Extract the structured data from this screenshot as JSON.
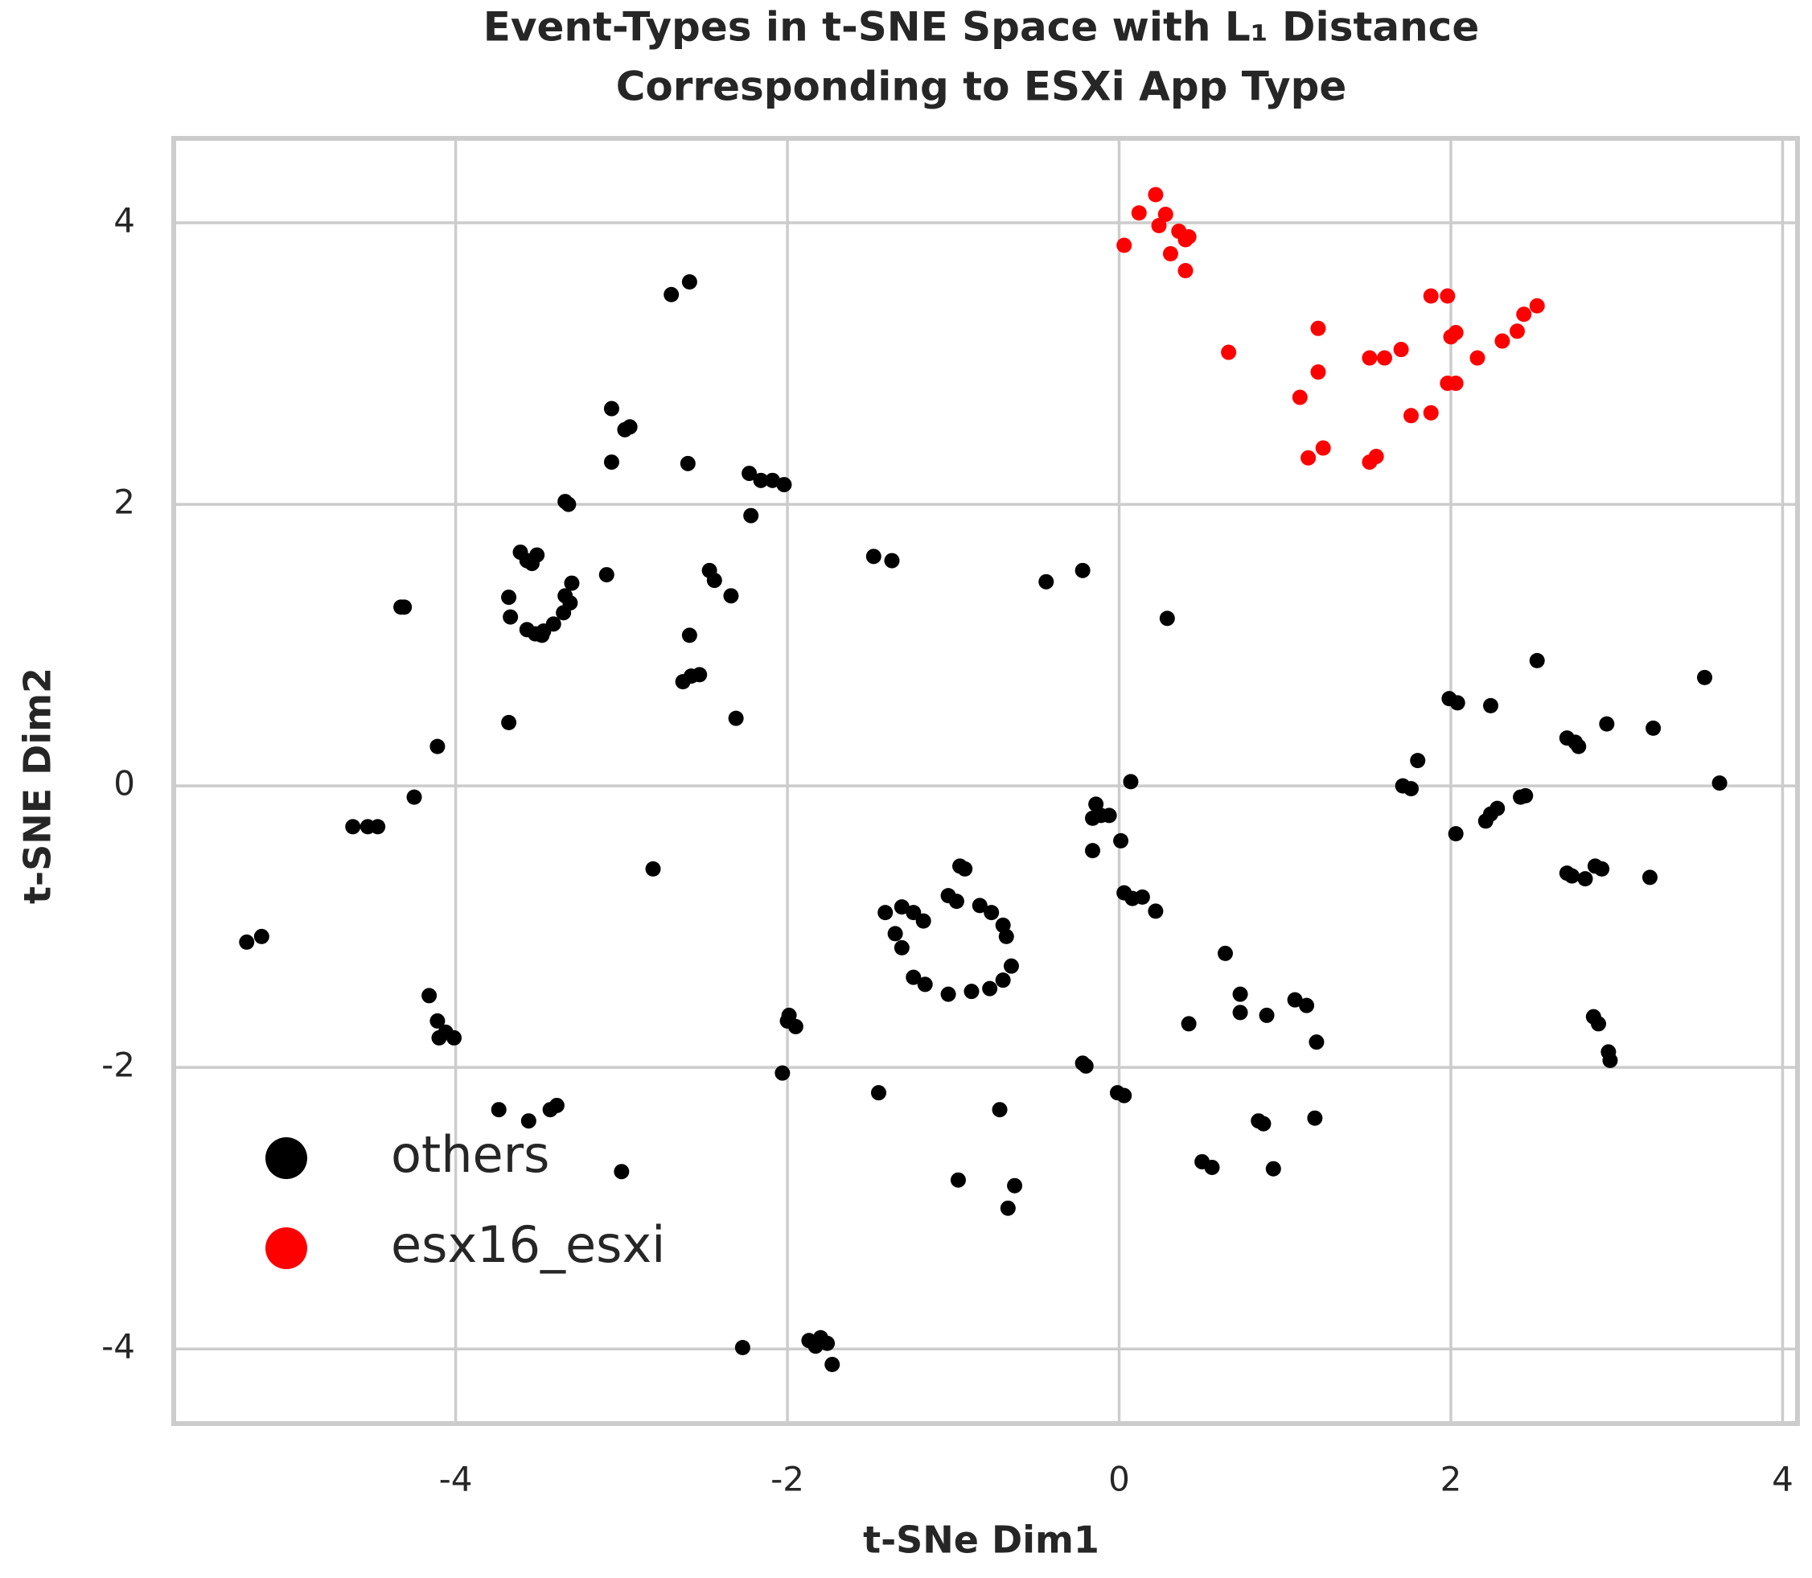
{
  "chart_data": {
    "type": "scatter",
    "title": [
      "Event-Types in t-SNE Space with L₁ Distance",
      "Corresponding to ESXi App Type"
    ],
    "x_label": "t-SNe Dim1",
    "y_label": "t-SNE Dim2",
    "xlim": [
      -5.7,
      4.09
    ],
    "ylim": [
      -4.53,
      4.6
    ],
    "xticks": [
      -4,
      -2,
      0,
      2,
      4
    ],
    "yticks": [
      -4,
      -2,
      0,
      2,
      4
    ],
    "grid": true,
    "legend": "lower left",
    "series": [
      {
        "name": "others",
        "color": "#000000",
        "x": [
          -2.7,
          -2.59,
          -3.06,
          -2.98,
          -2.95,
          -3.06,
          -2.6,
          -2.23,
          -2.16,
          -2.09,
          -2.02,
          -2.22,
          -3.34,
          -3.32,
          -3.09,
          -2.47,
          -2.44,
          -2.34,
          -1.48,
          -1.37,
          -0.44,
          -0.22,
          0.29,
          -4.33,
          -4.31,
          -3.61,
          -3.57,
          -3.54,
          -3.51,
          -3.68,
          -3.67,
          -3.57,
          -3.52,
          -3.47,
          -3.41,
          -3.35,
          -3.31,
          -3.3,
          -3.34,
          -3.48,
          -2.59,
          -2.63,
          -2.58,
          -2.53,
          -2.31,
          -3.68,
          -4.11,
          -4.25,
          -4.62,
          -4.53,
          -4.47,
          -2.81,
          -5.26,
          -5.17,
          -4.16,
          -4.11,
          -4.06,
          -4.01,
          -4.1,
          -3.74,
          -3.56,
          -3.43,
          -3.39,
          -3.0,
          -1.99,
          -1.95,
          -2.0,
          -2.03,
          -2.27,
          -1.87,
          -1.8,
          -1.76,
          -1.83,
          -1.73,
          -1.45,
          -1.41,
          -1.31,
          -1.24,
          -1.18,
          -1.35,
          -1.31,
          -1.24,
          -1.17,
          -1.03,
          -0.89,
          -0.78,
          -0.7,
          -0.65,
          -0.68,
          -0.7,
          -0.77,
          -0.84,
          -0.93,
          -0.96,
          -1.03,
          -0.98,
          -0.72,
          -0.97,
          -0.67,
          -0.63,
          -0.14,
          -0.11,
          -0.16,
          -0.06,
          0.07,
          0.01,
          -0.16,
          0.03,
          0.08,
          0.14,
          0.22,
          -0.22,
          -0.2,
          -0.01,
          0.03,
          0.64,
          0.73,
          0.73,
          0.42,
          0.89,
          1.06,
          1.13,
          1.19,
          0.84,
          0.87,
          1.18,
          0.5,
          0.56,
          0.93,
          2.52,
          1.99,
          2.04,
          2.24,
          2.7,
          2.75,
          2.77,
          2.94,
          3.22,
          3.53,
          3.62,
          1.8,
          1.71,
          1.76,
          2.03,
          2.21,
          2.24,
          2.28,
          2.42,
          2.45,
          2.7,
          2.73,
          2.81,
          2.87,
          2.91,
          3.2,
          2.86,
          2.89,
          2.95,
          2.96
        ],
        "y": [
          3.49,
          3.58,
          2.68,
          2.53,
          2.55,
          2.3,
          2.29,
          2.22,
          2.17,
          2.17,
          2.14,
          1.92,
          2.02,
          2.0,
          1.5,
          1.53,
          1.46,
          1.35,
          1.63,
          1.6,
          1.45,
          1.53,
          1.19,
          1.27,
          1.27,
          1.66,
          1.6,
          1.58,
          1.64,
          1.34,
          1.2,
          1.11,
          1.08,
          1.1,
          1.15,
          1.23,
          1.3,
          1.44,
          1.35,
          1.07,
          1.07,
          0.74,
          0.78,
          0.79,
          0.48,
          0.45,
          0.28,
          -0.08,
          -0.29,
          -0.29,
          -0.29,
          -0.59,
          -1.11,
          -1.07,
          -1.49,
          -1.67,
          -1.75,
          -1.79,
          -1.79,
          -2.3,
          -2.38,
          -2.3,
          -2.27,
          -2.74,
          -1.63,
          -1.71,
          -1.67,
          -2.04,
          -3.99,
          -3.94,
          -3.92,
          -3.96,
          -3.98,
          -4.11,
          -2.18,
          -0.9,
          -0.86,
          -0.9,
          -0.96,
          -1.05,
          -1.15,
          -1.36,
          -1.41,
          -1.48,
          -1.46,
          -1.44,
          -1.38,
          -1.28,
          -1.07,
          -0.99,
          -0.9,
          -0.85,
          -0.59,
          -0.57,
          -0.78,
          -0.82,
          -2.3,
          -2.8,
          -3.0,
          -2.84,
          -0.13,
          -0.21,
          -0.23,
          -0.21,
          0.03,
          -0.39,
          -0.46,
          -0.76,
          -0.8,
          -0.79,
          -0.89,
          -1.97,
          -1.99,
          -2.18,
          -2.2,
          -1.19,
          -1.48,
          -1.61,
          -1.69,
          -1.63,
          -1.52,
          -1.56,
          -1.82,
          -2.38,
          -2.4,
          -2.36,
          -2.67,
          -2.71,
          -2.72,
          0.89,
          0.62,
          0.59,
          0.57,
          0.34,
          0.31,
          0.28,
          0.44,
          0.41,
          0.77,
          0.02,
          0.18,
          0.0,
          -0.02,
          -0.34,
          -0.25,
          -0.2,
          -0.16,
          -0.08,
          -0.07,
          -0.62,
          -0.64,
          -0.66,
          -0.57,
          -0.59,
          -0.65,
          -1.64,
          -1.69,
          -1.89,
          -1.95
        ]
      },
      {
        "name": "esx16_esxi",
        "color": "#ff0000",
        "x": [
          0.03,
          0.12,
          0.22,
          0.24,
          0.28,
          0.31,
          0.36,
          0.4,
          0.42,
          0.4,
          0.66,
          1.09,
          1.2,
          1.2,
          1.14,
          1.23,
          1.51,
          1.6,
          1.7,
          1.51,
          1.55,
          1.76,
          1.88,
          1.88,
          1.98,
          2.0,
          2.03,
          1.98,
          2.03,
          2.16,
          2.31,
          2.4,
          2.44,
          2.52
        ],
        "y": [
          3.84,
          4.07,
          4.2,
          3.98,
          4.06,
          3.78,
          3.94,
          3.88,
          3.9,
          3.66,
          3.08,
          2.76,
          3.25,
          2.94,
          2.33,
          2.4,
          3.04,
          3.04,
          3.1,
          2.3,
          2.34,
          2.63,
          2.65,
          3.48,
          3.48,
          3.19,
          3.22,
          2.86,
          2.86,
          3.04,
          3.16,
          3.23,
          3.35,
          3.41
        ]
      }
    ]
  }
}
